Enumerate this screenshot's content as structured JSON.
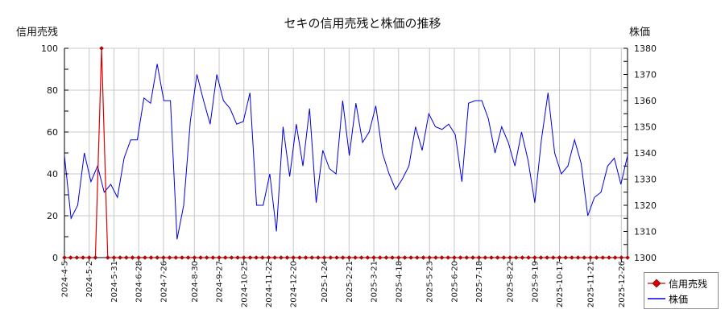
{
  "chart_data": {
    "type": "line",
    "title": "セキの信用売残と株価の推移",
    "ylabel_left": "信用売残",
    "ylabel_right": "株価",
    "ylim_left": [
      0,
      100
    ],
    "ylim_right": [
      1300,
      1380
    ],
    "yticks_left": [
      0,
      20,
      40,
      60,
      80,
      100
    ],
    "yticks_right": [
      1300,
      1310,
      1320,
      1330,
      1340,
      1350,
      1360,
      1370,
      1380
    ],
    "xtick_labels": [
      "2024-4-5",
      "2024-5-2",
      "2024-5-31",
      "2024-6-28",
      "2024-7-26",
      "2024-8-30",
      "2024-9-27",
      "2024-10-25",
      "2024-11-22",
      "2024-12-20",
      "2025-1-24",
      "2025-2-21",
      "2025-3-21",
      "2025-4-18",
      "2025-5-23",
      "2025-6-20",
      "2025-7-18",
      "2025-8-22",
      "2025-9-19",
      "2025-10-17",
      "2025-11-21",
      "2025-12-26"
    ],
    "grid": true,
    "legend_position": "bottom-right",
    "series": [
      {
        "name": "信用売残",
        "axis": "left",
        "color": "#dd0000",
        "marker": "diamond",
        "values": [
          0,
          0,
          0,
          0,
          0,
          0,
          100,
          0,
          0,
          0,
          0,
          0,
          0,
          0,
          0,
          0,
          0,
          0,
          0,
          0,
          0,
          0,
          0,
          0,
          0,
          0,
          0,
          0,
          0,
          0,
          0,
          0,
          0,
          0,
          0,
          0,
          0,
          0,
          0,
          0,
          0,
          0,
          0,
          0,
          0,
          0,
          0,
          0,
          0,
          0,
          0,
          0,
          0,
          0,
          0,
          0,
          0,
          0,
          0,
          0,
          0,
          0,
          0,
          0,
          0,
          0,
          0,
          0,
          0,
          0,
          0,
          0,
          0,
          0,
          0,
          0,
          0,
          0,
          0,
          0,
          0,
          0,
          0,
          0,
          0,
          0,
          0,
          0,
          0,
          0,
          0,
          0
        ]
      },
      {
        "name": "株価",
        "axis": "right",
        "color": "#0000dd",
        "values": [
          1339,
          1315,
          1320,
          1340,
          1329,
          1335,
          1325,
          1328,
          1323,
          1338,
          1345,
          1345,
          1361,
          1359,
          1374,
          1360,
          1360,
          1307,
          1320,
          1352,
          1370,
          1360,
          1351,
          1370,
          1360,
          1357,
          1351,
          1352,
          1363,
          1320,
          1320,
          1332,
          1310,
          1350,
          1331,
          1351,
          1335,
          1357,
          1321,
          1341,
          1334,
          1332,
          1360,
          1339,
          1359,
          1344,
          1348,
          1358,
          1340,
          1332,
          1326,
          1330,
          1335,
          1350,
          1341,
          1355,
          1350,
          1349,
          1351,
          1347,
          1329,
          1359,
          1360,
          1360,
          1353,
          1340,
          1350,
          1344,
          1335,
          1348,
          1337,
          1321,
          1345,
          1363,
          1340,
          1332,
          1335,
          1345,
          1336,
          1316,
          1323,
          1325,
          1335,
          1338,
          1328,
          1339
        ]
      }
    ]
  },
  "legend": {
    "items": [
      {
        "label": "信用売残"
      },
      {
        "label": "株価"
      }
    ]
  }
}
